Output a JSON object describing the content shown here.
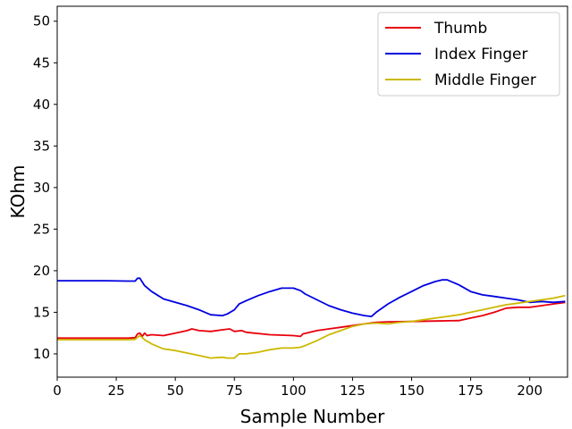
{
  "chart_data": {
    "type": "line",
    "title": "",
    "xlabel": "Sample Number",
    "ylabel": "KOhm",
    "xlim": [
      0,
      216
    ],
    "ylim": [
      7.2,
      51.8
    ],
    "xticks": [
      0,
      25,
      50,
      75,
      100,
      125,
      150,
      175,
      200
    ],
    "yticks": [
      10,
      15,
      20,
      25,
      30,
      35,
      40,
      45,
      50
    ],
    "grid": false,
    "legend_position": "top-right",
    "series": [
      {
        "name": "Thumb",
        "color": "#e8000b",
        "points": [
          [
            0,
            11.9
          ],
          [
            10,
            11.9
          ],
          [
            20,
            11.9
          ],
          [
            30,
            11.9
          ],
          [
            33,
            11.95
          ],
          [
            34,
            12.4
          ],
          [
            35,
            12.5
          ],
          [
            36,
            12.1
          ],
          [
            37,
            12.5
          ],
          [
            38,
            12.2
          ],
          [
            40,
            12.3
          ],
          [
            45,
            12.2
          ],
          [
            50,
            12.5
          ],
          [
            55,
            12.8
          ],
          [
            57,
            13.0
          ],
          [
            60,
            12.8
          ],
          [
            65,
            12.7
          ],
          [
            70,
            12.9
          ],
          [
            73,
            13.0
          ],
          [
            75,
            12.7
          ],
          [
            78,
            12.8
          ],
          [
            80,
            12.6
          ],
          [
            90,
            12.3
          ],
          [
            100,
            12.2
          ],
          [
            103,
            12.1
          ],
          [
            104,
            12.4
          ],
          [
            110,
            12.8
          ],
          [
            115,
            13.0
          ],
          [
            120,
            13.2
          ],
          [
            125,
            13.4
          ],
          [
            130,
            13.6
          ],
          [
            135,
            13.8
          ],
          [
            140,
            13.85
          ],
          [
            150,
            13.9
          ],
          [
            160,
            13.95
          ],
          [
            170,
            14.0
          ],
          [
            175,
            14.3
          ],
          [
            180,
            14.6
          ],
          [
            185,
            15.0
          ],
          [
            190,
            15.5
          ],
          [
            195,
            15.6
          ],
          [
            200,
            15.6
          ],
          [
            205,
            15.8
          ],
          [
            210,
            16.0
          ],
          [
            215,
            16.2
          ]
        ]
      },
      {
        "name": "Index Finger",
        "color": "#0000e0",
        "points": [
          [
            0,
            18.8
          ],
          [
            10,
            18.8
          ],
          [
            20,
            18.8
          ],
          [
            30,
            18.75
          ],
          [
            33,
            18.75
          ],
          [
            34,
            19.1
          ],
          [
            35,
            19.1
          ],
          [
            37,
            18.2
          ],
          [
            40,
            17.5
          ],
          [
            45,
            16.6
          ],
          [
            50,
            16.2
          ],
          [
            55,
            15.8
          ],
          [
            60,
            15.3
          ],
          [
            65,
            14.7
          ],
          [
            70,
            14.6
          ],
          [
            72,
            14.8
          ],
          [
            75,
            15.3
          ],
          [
            77,
            16.0
          ],
          [
            80,
            16.4
          ],
          [
            85,
            17.0
          ],
          [
            90,
            17.5
          ],
          [
            95,
            17.9
          ],
          [
            100,
            17.9
          ],
          [
            103,
            17.6
          ],
          [
            105,
            17.2
          ],
          [
            110,
            16.5
          ],
          [
            115,
            15.8
          ],
          [
            120,
            15.3
          ],
          [
            125,
            14.9
          ],
          [
            130,
            14.6
          ],
          [
            133,
            14.5
          ],
          [
            135,
            15.0
          ],
          [
            140,
            16.0
          ],
          [
            145,
            16.8
          ],
          [
            150,
            17.5
          ],
          [
            155,
            18.2
          ],
          [
            160,
            18.7
          ],
          [
            163,
            18.9
          ],
          [
            165,
            18.9
          ],
          [
            170,
            18.3
          ],
          [
            175,
            17.5
          ],
          [
            180,
            17.1
          ],
          [
            185,
            16.9
          ],
          [
            190,
            16.7
          ],
          [
            195,
            16.5
          ],
          [
            200,
            16.2
          ],
          [
            205,
            16.3
          ],
          [
            210,
            16.2
          ],
          [
            215,
            16.3
          ]
        ]
      },
      {
        "name": "Middle Finger",
        "color": "#ccb800",
        "points": [
          [
            0,
            11.7
          ],
          [
            10,
            11.7
          ],
          [
            20,
            11.7
          ],
          [
            30,
            11.7
          ],
          [
            33,
            11.75
          ],
          [
            34,
            12.0
          ],
          [
            35,
            12.2
          ],
          [
            37,
            11.7
          ],
          [
            40,
            11.2
          ],
          [
            45,
            10.6
          ],
          [
            50,
            10.4
          ],
          [
            55,
            10.1
          ],
          [
            60,
            9.8
          ],
          [
            65,
            9.5
          ],
          [
            70,
            9.6
          ],
          [
            72,
            9.5
          ],
          [
            75,
            9.5
          ],
          [
            77,
            10.0
          ],
          [
            80,
            10.0
          ],
          [
            85,
            10.2
          ],
          [
            90,
            10.5
          ],
          [
            95,
            10.7
          ],
          [
            100,
            10.7
          ],
          [
            103,
            10.8
          ],
          [
            105,
            11.0
          ],
          [
            110,
            11.6
          ],
          [
            115,
            12.3
          ],
          [
            120,
            12.8
          ],
          [
            125,
            13.3
          ],
          [
            130,
            13.6
          ],
          [
            135,
            13.7
          ],
          [
            140,
            13.6
          ],
          [
            145,
            13.8
          ],
          [
            150,
            13.9
          ],
          [
            155,
            14.1
          ],
          [
            160,
            14.3
          ],
          [
            165,
            14.5
          ],
          [
            170,
            14.7
          ],
          [
            175,
            15.0
          ],
          [
            180,
            15.3
          ],
          [
            185,
            15.6
          ],
          [
            190,
            15.9
          ],
          [
            195,
            16.1
          ],
          [
            200,
            16.3
          ],
          [
            205,
            16.5
          ],
          [
            210,
            16.7
          ],
          [
            215,
            17.0
          ]
        ]
      }
    ]
  }
}
